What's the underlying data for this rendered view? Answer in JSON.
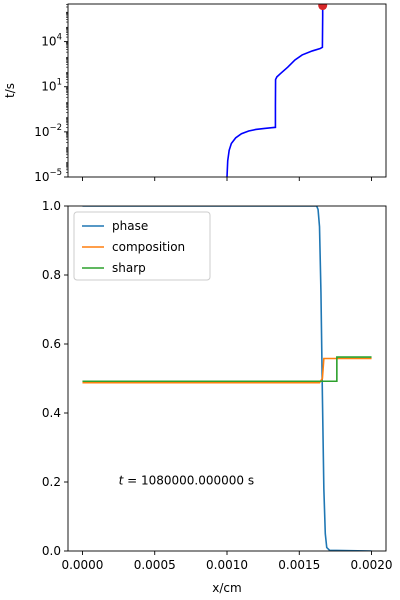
{
  "chart_data": [
    {
      "type": "line",
      "yscale": "log",
      "ylabel": "t/s",
      "xlim": [
        -0.0001,
        0.0021
      ],
      "ylim": [
        1e-05,
        3162278
      ],
      "y_tick_labels": [
        "10",
        "10",
        "10",
        "10"
      ],
      "y_tick_exponents": [
        "−5",
        "−2",
        "1",
        "4"
      ],
      "y_tick_values": [
        1e-05,
        0.01,
        10,
        10000.0
      ],
      "grid": false,
      "series": [
        {
          "color": "#0000ff",
          "points": [
            [
              0.001,
              1e-05
            ],
            [
              0.001005,
              0.00012
            ],
            [
              0.001015,
              0.0006
            ],
            [
              0.00103,
              0.0017
            ],
            [
              0.00106,
              0.004
            ],
            [
              0.0011,
              0.0075
            ],
            [
              0.00115,
              0.0115
            ],
            [
              0.0012,
              0.0145
            ],
            [
              0.00126,
              0.017
            ],
            [
              0.00131,
              0.019
            ],
            [
              0.001335,
              0.02
            ],
            [
              0.001335,
              0.5
            ],
            [
              0.001336,
              30
            ],
            [
              0.001345,
              45
            ],
            [
              0.00137,
              75
            ],
            [
              0.00142,
              200
            ],
            [
              0.00147,
              600
            ],
            [
              0.00152,
              1300
            ],
            [
              0.00159,
              2400
            ],
            [
              0.001645,
              3500
            ],
            [
              0.00166,
              4200
            ],
            [
              0.001662,
              500000
            ],
            [
              0.001662,
              2500000
            ]
          ]
        }
      ],
      "marker": {
        "x": 0.001662,
        "y": 2500000,
        "color": "#d62728"
      }
    },
    {
      "type": "line",
      "xlabel": "x/cm",
      "xlim": [
        -0.0001,
        0.0021
      ],
      "ylim": [
        0.0,
        1.0
      ],
      "x_ticks": [
        0.0,
        0.0005,
        0.001,
        0.0015,
        0.002
      ],
      "x_tick_labels": [
        "0.0000",
        "0.0005",
        "0.0010",
        "0.0015",
        "0.0020"
      ],
      "y_ticks": [
        0.0,
        0.2,
        0.4,
        0.6,
        0.8,
        1.0
      ],
      "y_tick_labels": [
        "0.0",
        "0.2",
        "0.4",
        "0.6",
        "0.8",
        "1.0"
      ],
      "grid": false,
      "legend_position": "top-left",
      "annotation": {
        "text": "t = 1080000.000000 s",
        "prefix": "t",
        "body": " = 1080000.000000 s",
        "x": 0.00025,
        "y": 0.205
      },
      "series": [
        {
          "name": "phase",
          "color": "#1f77b4",
          "points": [
            [
              0.0,
              1.0
            ],
            [
              0.00162,
              1.0
            ],
            [
              0.00163,
              0.99
            ],
            [
              0.00164,
              0.94
            ],
            [
              0.00165,
              0.75
            ],
            [
              0.00166,
              0.45
            ],
            [
              0.00167,
              0.18
            ],
            [
              0.00168,
              0.05
            ],
            [
              0.00169,
              0.01
            ],
            [
              0.00171,
              0.002
            ],
            [
              0.002,
              0.0
            ]
          ]
        },
        {
          "name": "composition",
          "color": "#ff7f0e",
          "points": [
            [
              0.0,
              0.488
            ],
            [
              0.00164,
              0.488
            ],
            [
              0.00166,
              0.5
            ],
            [
              0.00167,
              0.558
            ],
            [
              0.002,
              0.558
            ]
          ]
        },
        {
          "name": "sharp",
          "color": "#2ca02c",
          "points": [
            [
              0.0,
              0.492
            ],
            [
              0.00176,
              0.492
            ],
            [
              0.00176,
              0.562
            ],
            [
              0.002,
              0.562
            ]
          ]
        }
      ]
    }
  ]
}
